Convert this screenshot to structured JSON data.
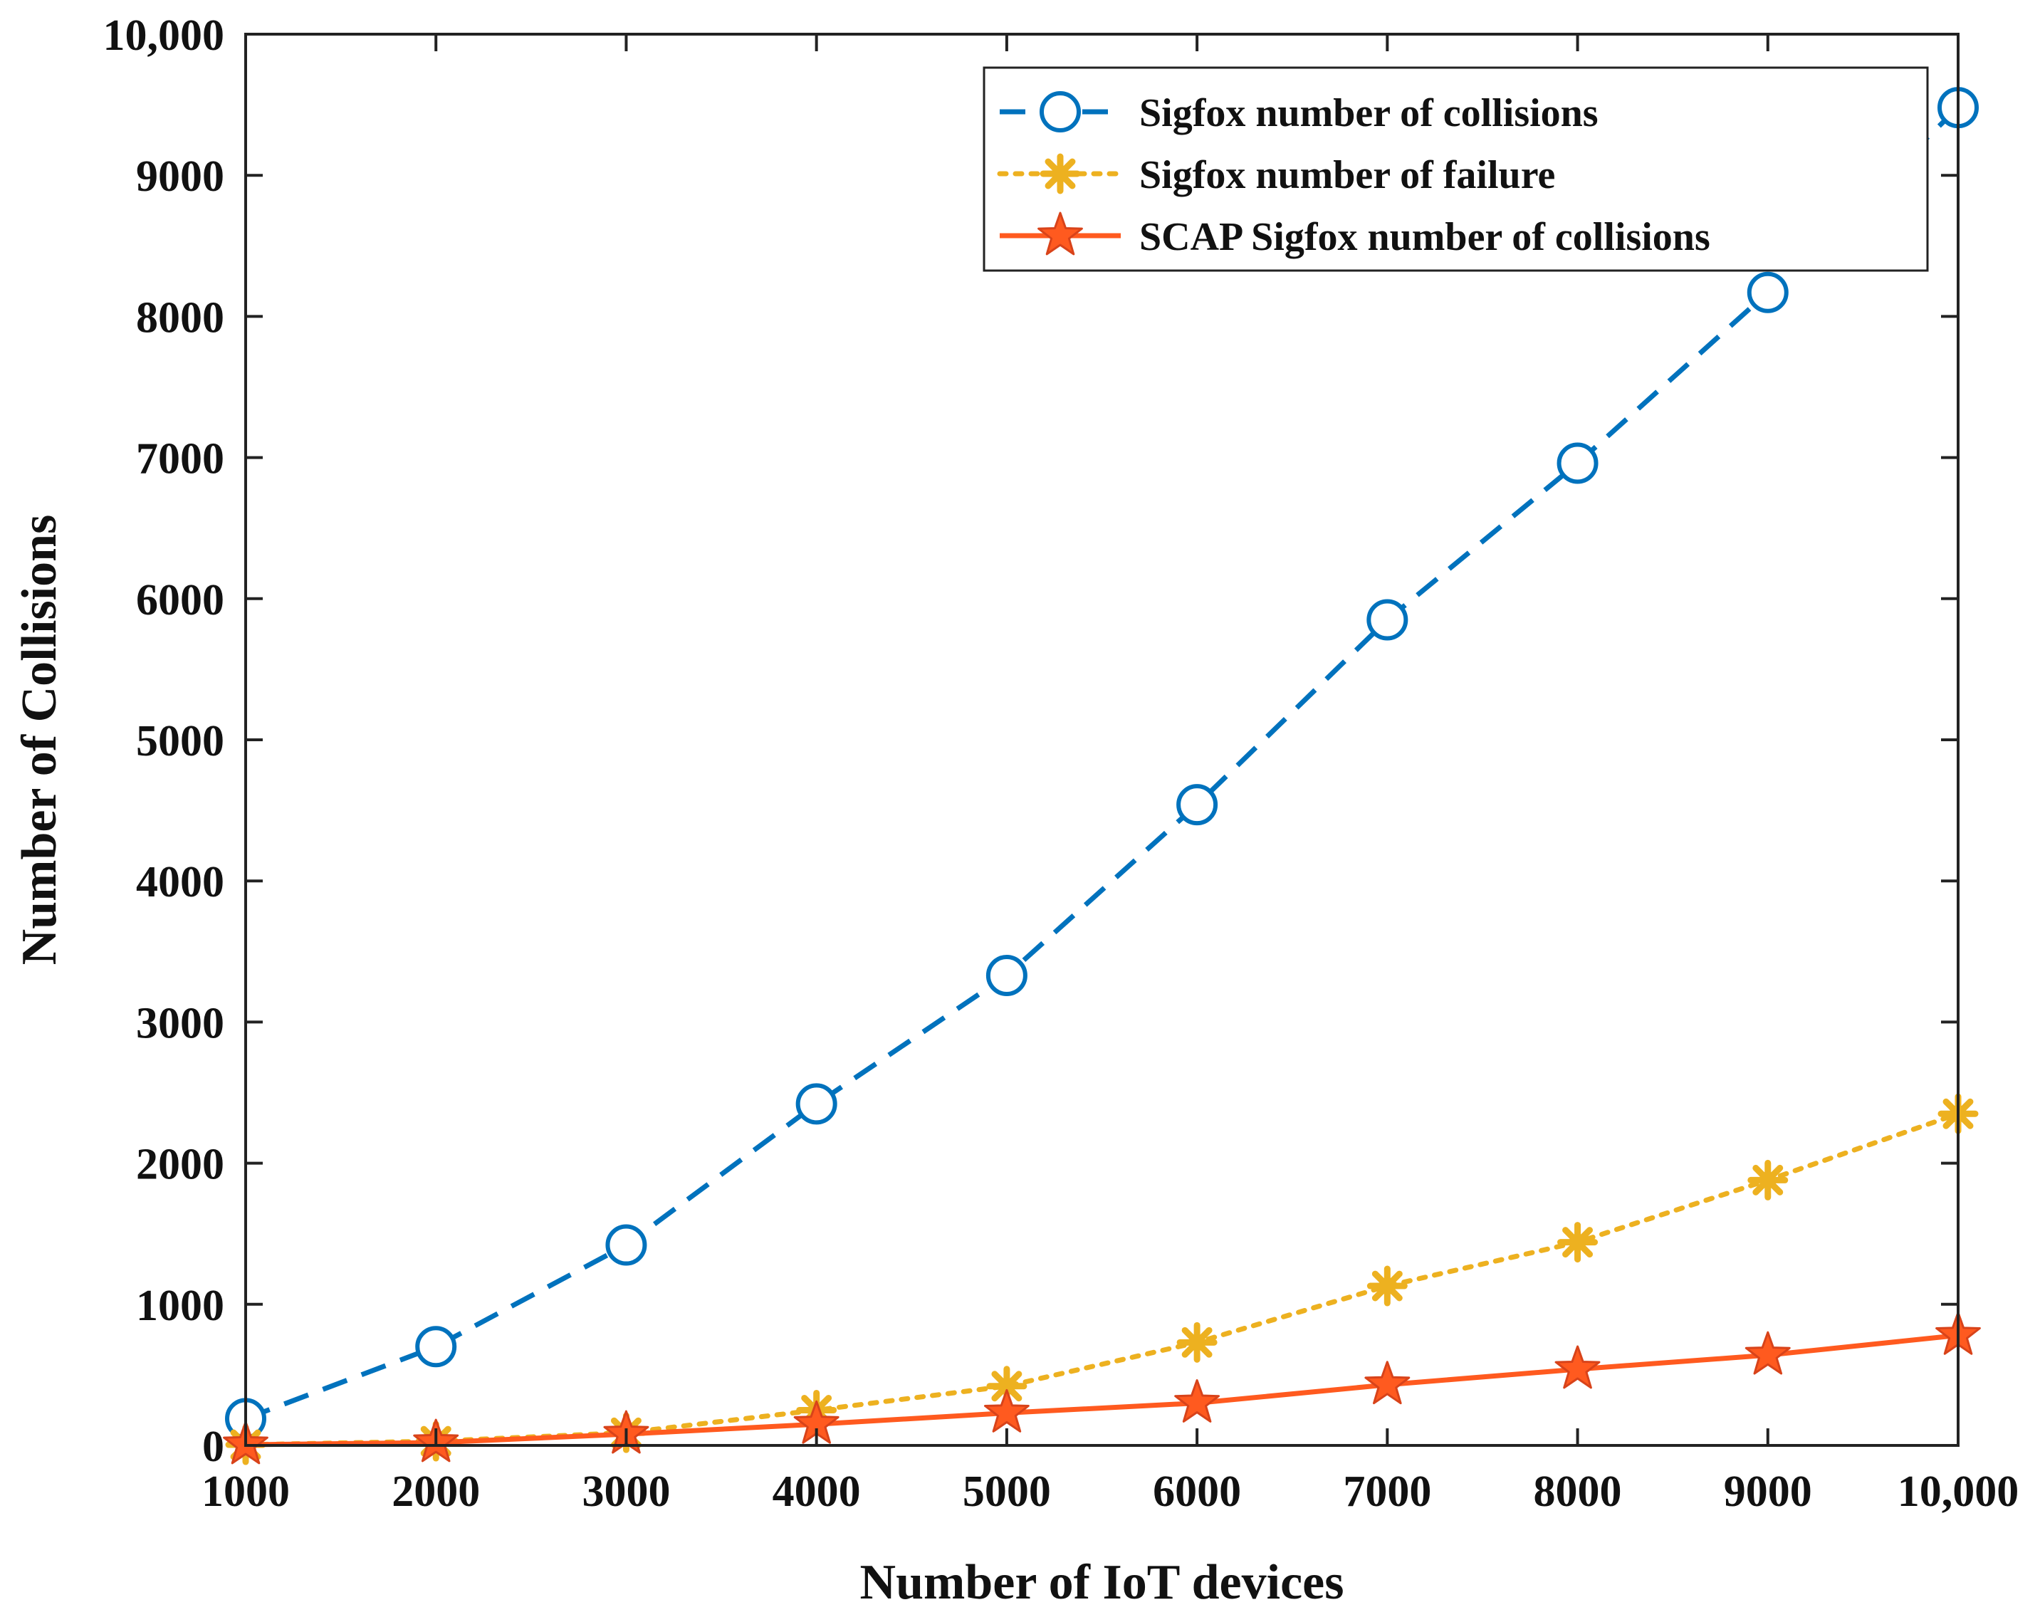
{
  "chart_data": {
    "type": "line",
    "title": "",
    "xlabel": "Number of IoT devices",
    "ylabel": "Number of Collisions",
    "x": [
      1000,
      2000,
      3000,
      4000,
      5000,
      6000,
      7000,
      8000,
      9000,
      10000
    ],
    "xlim": [
      1000,
      10000
    ],
    "ylim": [
      0,
      10000
    ],
    "xticks": [
      1000,
      2000,
      3000,
      4000,
      5000,
      6000,
      7000,
      8000,
      9000,
      10000
    ],
    "xtick_labels": [
      "1000",
      "2000",
      "3000",
      "4000",
      "5000",
      "6000",
      "7000",
      "8000",
      "9000",
      "10,000"
    ],
    "yticks": [
      0,
      1000,
      2000,
      3000,
      4000,
      5000,
      6000,
      7000,
      8000,
      9000,
      10000
    ],
    "ytick_labels": [
      "0",
      "1000",
      "2000",
      "3000",
      "4000",
      "5000",
      "6000",
      "7000",
      "8000",
      "9000",
      "10,000"
    ],
    "grid": false,
    "legend_position": "top-right",
    "series": [
      {
        "name": "Sigfox number of collisions",
        "values": [
          190,
          700,
          1420,
          2420,
          3330,
          4540,
          5850,
          6960,
          8170,
          9480
        ],
        "color": "#0072BD",
        "line_style": "dashed",
        "marker": "circle"
      },
      {
        "name": "Sigfox number of failure",
        "values": [
          5,
          30,
          90,
          250,
          420,
          730,
          1130,
          1440,
          1880,
          2350
        ],
        "color": "#EDB120",
        "line_style": "dotted",
        "marker": "asterisk"
      },
      {
        "name": "SCAP Sigfox number of collisions",
        "values": [
          5,
          20,
          80,
          150,
          230,
          300,
          430,
          540,
          640,
          780
        ],
        "color": "#FF5A1F",
        "line_style": "solid",
        "marker": "star"
      }
    ]
  }
}
